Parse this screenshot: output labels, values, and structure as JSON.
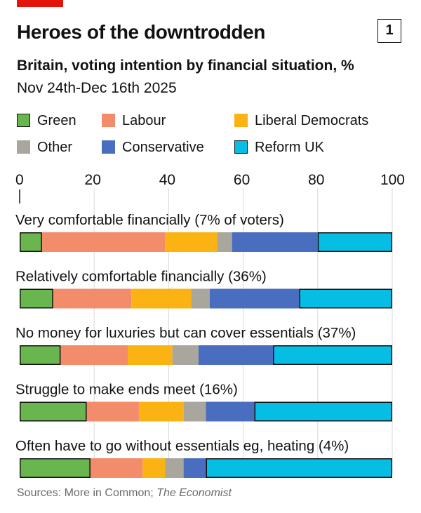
{
  "header": {
    "title": "Heroes of the downtrodden",
    "chart_number": "1",
    "subtitle": "Britain, voting intention by financial situation, %",
    "date_range": "Nov 24th-Dec 16th 2025"
  },
  "colors": {
    "brand_red": "#e3120b",
    "Green": "#6ab64e",
    "Labour": "#f28c6b",
    "Liberal Democrats": "#fbb313",
    "Other": "#a8a69d",
    "Conservative": "#4a6ebf",
    "Reform UK": "#06bde4"
  },
  "legend": [
    {
      "label": "Green",
      "key": "Green",
      "outlined": true
    },
    {
      "label": "Labour",
      "key": "Labour",
      "outlined": false
    },
    {
      "label": "Liberal Democrats",
      "key": "Liberal Democrats",
      "outlined": false
    },
    {
      "label": "Other",
      "key": "Other",
      "outlined": false
    },
    {
      "label": "Conservative",
      "key": "Conservative",
      "outlined": false
    },
    {
      "label": "Reform UK",
      "key": "Reform UK",
      "outlined": true
    }
  ],
  "chart_data": {
    "type": "bar",
    "orientation": "horizontal",
    "stacked": true,
    "title": "Heroes of the downtrodden",
    "subtitle": "Britain, voting intention by financial situation, %",
    "xlim": [
      0,
      100
    ],
    "xticks": [
      0,
      20,
      40,
      60,
      80,
      100
    ],
    "grid": true,
    "legend_position": "top",
    "categories": [
      "Very comfortable financially (7% of voters)",
      "Relatively comfortable financially (36%)",
      "No money for luxuries but can cover essentials (37%)",
      "Struggle to make ends meet (16%)",
      "Often have to go without essentials eg, heating (4%)"
    ],
    "series": [
      {
        "name": "Green",
        "values": [
          6,
          9,
          11,
          18,
          19
        ]
      },
      {
        "name": "Labour",
        "values": [
          33,
          21,
          18,
          14,
          14
        ]
      },
      {
        "name": "Liberal Democrats",
        "values": [
          14,
          16,
          12,
          12,
          6
        ]
      },
      {
        "name": "Other",
        "values": [
          4,
          5,
          7,
          6,
          5
        ]
      },
      {
        "name": "Conservative",
        "values": [
          23,
          24,
          20,
          13,
          6
        ]
      },
      {
        "name": "Reform UK",
        "values": [
          20,
          25,
          32,
          37,
          50
        ]
      }
    ]
  },
  "footer": {
    "sources_prefix": "Sources: More in Common; ",
    "sources_italic": "The Economist"
  }
}
